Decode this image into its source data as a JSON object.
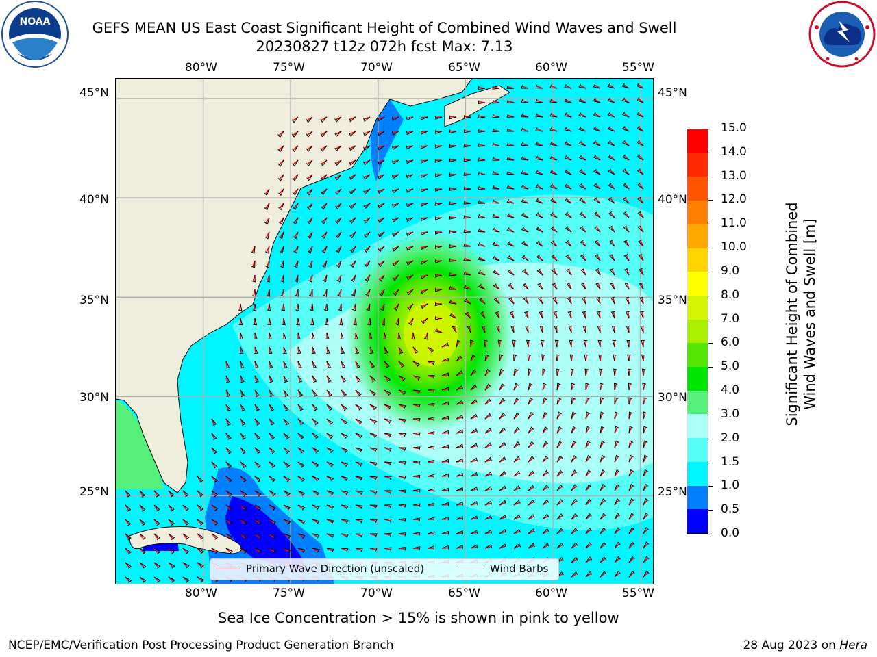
{
  "header": {
    "title_line1": "GEFS MEAN US East Coast Significant Height of Combined Wind Waves and Swell",
    "title_line2": "20230827 t12z 072h fcst   Max: 7.13"
  },
  "logos": {
    "left": {
      "name": "noaa-logo",
      "text": "NOAA"
    },
    "right": {
      "name": "national-weather-service-logo"
    }
  },
  "map": {
    "top_lon_labels": [
      "80°W",
      "75°W",
      "70°W",
      "65°W",
      "60°W",
      "55°W"
    ],
    "bottom_lon_labels": [
      "80°W",
      "75°W",
      "70°W",
      "65°W",
      "60°W",
      "55°W"
    ],
    "left_lat_labels": [
      "45°N",
      "40°N",
      "35°N",
      "30°N",
      "25°N"
    ],
    "right_lat_labels": [
      "45°N",
      "40°N",
      "35°N",
      "30°N",
      "25°N"
    ],
    "max_value": 7.13,
    "peak_location": {
      "lon": -66.5,
      "lat": 33.0
    },
    "colors": {
      "land": "#efeedc",
      "ocean_low": "#00f5ff",
      "grid": "#b0b0b0"
    }
  },
  "legend": {
    "items": [
      {
        "label": "Primary Wave Direction (unscaled)",
        "color": "#ff0000"
      },
      {
        "label": "Wind Barbs",
        "color": "#000000"
      }
    ]
  },
  "colorbar": {
    "label_line1": "Significant Height of Combined",
    "label_line2": "Wind Waves and Swell [m]",
    "ticks": [
      "15.0",
      "14.0",
      "13.0",
      "12.0",
      "11.0",
      "10.0",
      "9.0",
      "8.0",
      "7.0",
      "6.0",
      "5.0",
      "4.0",
      "3.0",
      "2.0",
      "1.5",
      "1.0",
      "0.5",
      "0.0"
    ],
    "colors": [
      "#ff0000",
      "#ff2a00",
      "#ff5500",
      "#ff8000",
      "#ffaa00",
      "#ffd500",
      "#ffff00",
      "#d4f500",
      "#aaf000",
      "#55e600",
      "#00e600",
      "#55f07a",
      "#aafff7",
      "#55fff5",
      "#00f5ff",
      "#0080ff",
      "#0000ff"
    ]
  },
  "notes": {
    "sea_ice": "Sea Ice Concentration > 15% is shown in pink to yellow"
  },
  "footer": {
    "left": "NCEP/EMC/Verification Post Processing Product Generation Branch",
    "right_prefix": "28 Aug 2023 on ",
    "right_machine": "Hera"
  }
}
